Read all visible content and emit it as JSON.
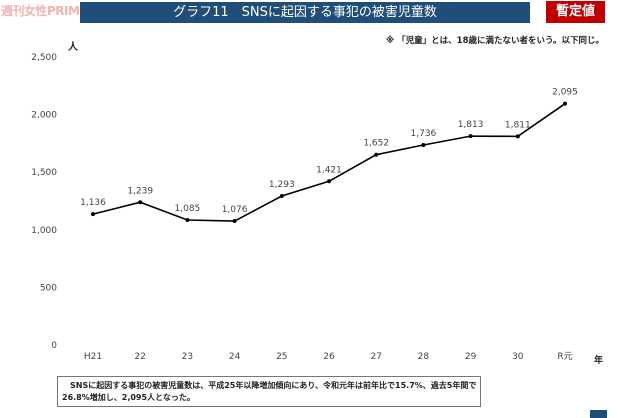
{
  "logo": "週刊女性PRIME",
  "header": {
    "title": "グラフ11　SNSに起因する事犯の被害児童数",
    "badge": "暫定値"
  },
  "note": "※ 「児童」とは、18歳に満たない者をいう。以下同じ。",
  "summary": "　SNSに起因する事犯の被害児童数は、平成25年以降増加傾向にあり、令和元年は前年比で15.7%、過去5年間で26.8%増加し、2,095人となった。",
  "colors": {
    "header": "#1f4e79",
    "badge": "#c00000",
    "line": "#000000"
  },
  "chart_data": {
    "type": "line",
    "title": "グラフ11　SNSに起因する事犯の被害児童数",
    "xlabel": "年",
    "ylabel": "人",
    "categories": [
      "H21",
      "22",
      "23",
      "24",
      "25",
      "26",
      "27",
      "28",
      "29",
      "30",
      "R元"
    ],
    "values": [
      1136,
      1239,
      1085,
      1076,
      1293,
      1421,
      1652,
      1736,
      1813,
      1811,
      2095
    ],
    "value_labels": [
      "1,136",
      "1,239",
      "1,085",
      "1,076",
      "1,293",
      "1,421",
      "1,652",
      "1,736",
      "1,813",
      "1,811",
      "2,095"
    ],
    "ylim": [
      0,
      2500
    ],
    "yticks": [
      0,
      500,
      1000,
      1500,
      2000,
      2500
    ],
    "ytick_labels": [
      "0",
      "500",
      "1,000",
      "1,500",
      "2,000",
      "2,500"
    ],
    "grid": false,
    "marker": "circle"
  }
}
